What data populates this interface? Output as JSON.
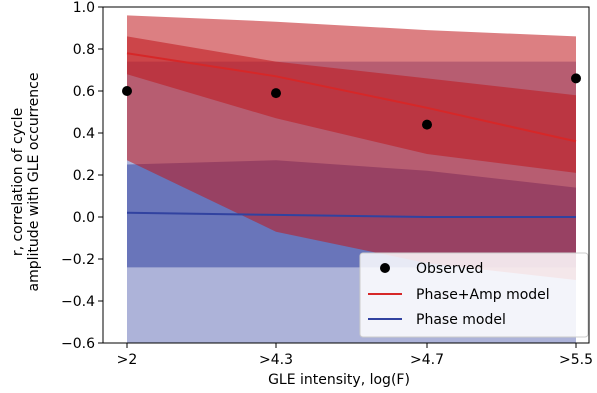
{
  "chart_data": {
    "type": "line",
    "xlabel": "GLE intensity, log(F)",
    "ylabel_line1": "r, correlation of cycle",
    "ylabel_line2": "amplitude with GLE occurrence",
    "ylim": [
      -0.6,
      1.0
    ],
    "yticks": [
      "−0.6",
      "−0.4",
      "−0.2",
      "0.0",
      "0.2",
      "0.4",
      "0.6",
      "0.8",
      "1.0"
    ],
    "ytick_values": [
      -0.6,
      -0.4,
      -0.2,
      0.0,
      0.2,
      0.4,
      0.6,
      0.8,
      1.0
    ],
    "categories": [
      ">2",
      ">4.3",
      ">4.7",
      ">5.5"
    ],
    "x": [
      2.0,
      4.3,
      4.7,
      5.5
    ],
    "legend_position": "lower right",
    "observed": {
      "name": "Observed",
      "color": "#000000",
      "values": [
        0.6,
        0.59,
        0.44,
        0.66
      ]
    },
    "series": [
      {
        "name": "Phase+Amp model",
        "color": "#d62728",
        "line": [
          0.78,
          0.67,
          0.52,
          0.36
        ],
        "band_inner_upper": [
          0.86,
          0.74,
          0.66,
          0.58
        ],
        "band_inner_lower": [
          0.68,
          0.47,
          0.3,
          0.21
        ],
        "band_outer_upper": [
          0.96,
          0.93,
          0.89,
          0.86
        ],
        "band_outer_lower": [
          0.27,
          -0.07,
          -0.22,
          -0.3
        ]
      },
      {
        "name": "Phase model",
        "color": "#3142a0",
        "line": [
          0.02,
          0.01,
          0.0,
          0.0
        ],
        "band_inner_upper": [
          0.25,
          0.27,
          0.22,
          0.14
        ],
        "band_inner_lower": [
          -0.24,
          -0.24,
          -0.24,
          -0.24
        ],
        "band_outer_upper": [
          0.74,
          0.74,
          0.74,
          0.74
        ],
        "band_outer_lower": [
          -0.6,
          -0.6,
          -0.6,
          -0.6
        ]
      }
    ]
  }
}
